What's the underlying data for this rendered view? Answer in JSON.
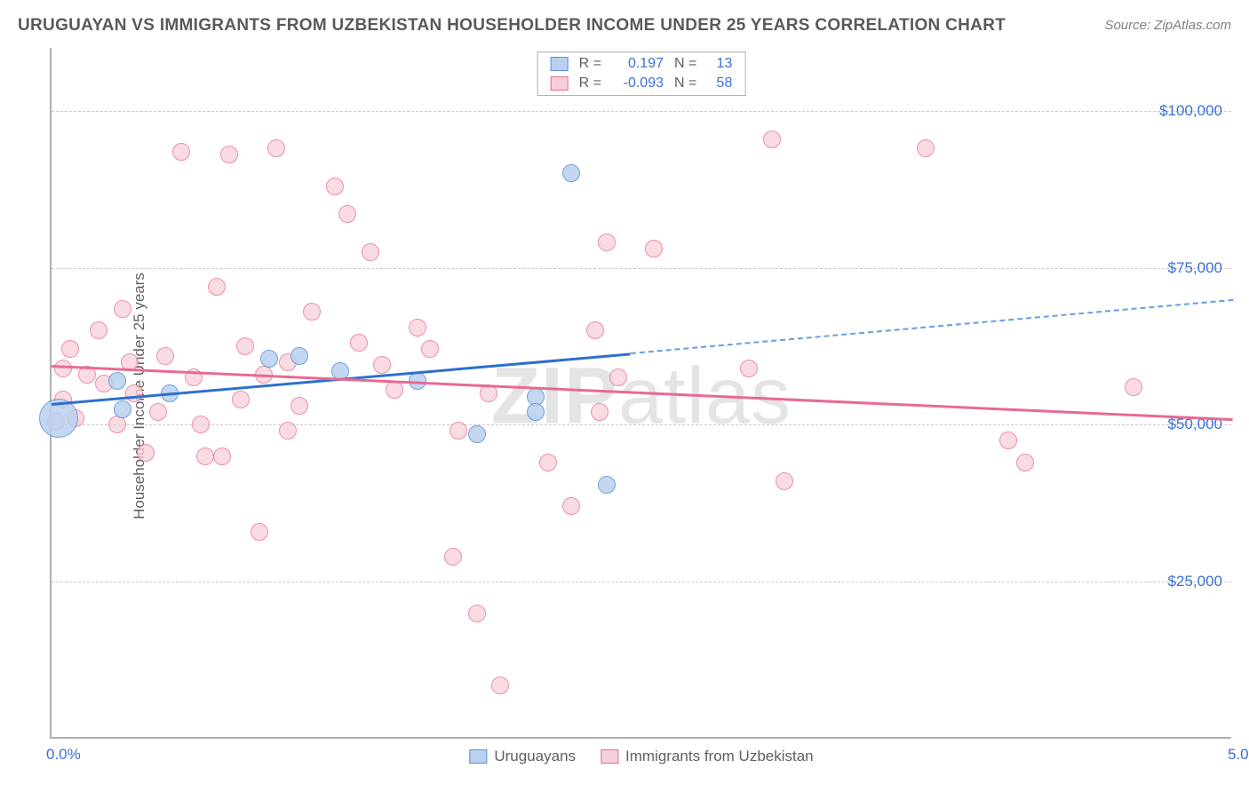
{
  "title": "URUGUAYAN VS IMMIGRANTS FROM UZBEKISTAN HOUSEHOLDER INCOME UNDER 25 YEARS CORRELATION CHART",
  "source": "Source: ZipAtlas.com",
  "ylabel": "Householder Income Under 25 years",
  "watermark_a": "ZIP",
  "watermark_b": "atlas",
  "chart": {
    "type": "scatter",
    "background_color": "#ffffff",
    "grid_color": "#c8c8c8",
    "axis_color": "#b0b0b0",
    "tick_label_color": "#3b6fd6",
    "tick_fontsize": 17,
    "title_fontsize": 19,
    "title_color": "#5a5a5a",
    "xlim": [
      0.0,
      5.0
    ],
    "ylim": [
      0,
      110000
    ],
    "yticks": [
      {
        "v": 25000,
        "label": "$25,000"
      },
      {
        "v": 50000,
        "label": "$50,000"
      },
      {
        "v": 75000,
        "label": "$75,000"
      },
      {
        "v": 100000,
        "label": "$100,000"
      }
    ],
    "xticks": [
      {
        "v": 0.0,
        "label": "0.0%"
      },
      {
        "v": 5.0,
        "label": "5.0%"
      }
    ],
    "series": [
      {
        "name": "Uruguayans",
        "color_fill": "#b9d1ef",
        "color_stroke": "#5a8fd8",
        "marker_radius": 10,
        "marker_opacity": 0.85,
        "points": [
          [
            0.03,
            51000,
            22
          ],
          [
            0.28,
            57000,
            10
          ],
          [
            0.3,
            52500,
            10
          ],
          [
            0.5,
            55000,
            10
          ],
          [
            0.92,
            60500,
            10
          ],
          [
            1.22,
            58500,
            10
          ],
          [
            1.55,
            57000,
            10
          ],
          [
            1.8,
            48500,
            10
          ],
          [
            2.05,
            54500,
            10
          ],
          [
            2.2,
            90000,
            10
          ],
          [
            2.35,
            40500,
            10
          ],
          [
            1.05,
            61000,
            10
          ],
          [
            2.05,
            52000,
            10
          ]
        ],
        "trend": {
          "x0": 0.0,
          "y0": 53500,
          "x1": 2.45,
          "y1": 61500,
          "x2": 5.0,
          "y2": 70000,
          "solid_color": "#2d6fd0",
          "dash_color": "#6b9be0",
          "width": 3
        }
      },
      {
        "name": "Immigrants from Uzbekistan",
        "color_fill": "#f7cfd9",
        "color_stroke": "#e86a8f",
        "marker_radius": 10,
        "marker_opacity": 0.75,
        "points": [
          [
            0.02,
            50500,
            10
          ],
          [
            0.05,
            59000,
            10
          ],
          [
            0.08,
            62000,
            10
          ],
          [
            0.1,
            51000,
            10
          ],
          [
            0.15,
            58000,
            10
          ],
          [
            0.2,
            65000,
            10
          ],
          [
            0.22,
            56500,
            10
          ],
          [
            0.3,
            68500,
            10
          ],
          [
            0.33,
            60000,
            10
          ],
          [
            0.35,
            55000,
            10
          ],
          [
            0.4,
            45500,
            10
          ],
          [
            0.45,
            52000,
            10
          ],
          [
            0.48,
            61000,
            10
          ],
          [
            0.55,
            93500,
            10
          ],
          [
            0.6,
            57500,
            10
          ],
          [
            0.63,
            50000,
            10
          ],
          [
            0.7,
            72000,
            10
          ],
          [
            0.72,
            45000,
            10
          ],
          [
            0.75,
            93000,
            10
          ],
          [
            0.8,
            54000,
            10
          ],
          [
            0.82,
            62500,
            10
          ],
          [
            0.88,
            33000,
            10
          ],
          [
            0.95,
            94000,
            10
          ],
          [
            1.0,
            49000,
            10
          ],
          [
            1.0,
            60000,
            10
          ],
          [
            1.05,
            53000,
            10
          ],
          [
            1.1,
            68000,
            10
          ],
          [
            1.2,
            88000,
            10
          ],
          [
            1.25,
            83500,
            10
          ],
          [
            1.3,
            63000,
            10
          ],
          [
            1.35,
            77500,
            10
          ],
          [
            1.4,
            59500,
            10
          ],
          [
            1.45,
            55500,
            10
          ],
          [
            1.55,
            65500,
            10
          ],
          [
            1.6,
            62000,
            10
          ],
          [
            1.7,
            29000,
            10
          ],
          [
            1.72,
            49000,
            10
          ],
          [
            1.8,
            20000,
            10
          ],
          [
            1.85,
            55000,
            10
          ],
          [
            1.9,
            8500,
            10
          ],
          [
            2.1,
            44000,
            10
          ],
          [
            2.2,
            37000,
            10
          ],
          [
            2.3,
            65000,
            10
          ],
          [
            2.32,
            52000,
            10
          ],
          [
            2.35,
            79000,
            10
          ],
          [
            2.4,
            57500,
            10
          ],
          [
            2.55,
            78000,
            10
          ],
          [
            2.95,
            59000,
            10
          ],
          [
            3.05,
            95500,
            10
          ],
          [
            3.1,
            41000,
            10
          ],
          [
            3.7,
            94000,
            10
          ],
          [
            0.65,
            45000,
            10
          ],
          [
            0.9,
            58000,
            10
          ],
          [
            0.05,
            54000,
            10
          ],
          [
            4.05,
            47500,
            10
          ],
          [
            4.12,
            44000,
            10
          ],
          [
            4.58,
            56000,
            10
          ],
          [
            0.28,
            50000,
            10
          ]
        ],
        "trend": {
          "x0": 0.0,
          "y0": 59500,
          "x1": 5.0,
          "y1": 51000,
          "solid_color": "#e86a8f",
          "width": 3
        }
      }
    ],
    "legend_top": {
      "border_color": "#b0b0b0",
      "rows": [
        {
          "swatch_fill": "#b9d1ef",
          "swatch_stroke": "#5a8fd8",
          "R_label": "R =",
          "R": "0.197",
          "N_label": "N =",
          "N": "13"
        },
        {
          "swatch_fill": "#f7cfd9",
          "swatch_stroke": "#e86a8f",
          "R_label": "R =",
          "R": "-0.093",
          "N_label": "N =",
          "N": "58"
        }
      ]
    },
    "legend_bottom": [
      {
        "swatch_fill": "#b9d1ef",
        "swatch_stroke": "#5a8fd8",
        "label": "Uruguayans"
      },
      {
        "swatch_fill": "#f7cfd9",
        "swatch_stroke": "#e86a8f",
        "label": "Immigrants from Uzbekistan"
      }
    ]
  }
}
